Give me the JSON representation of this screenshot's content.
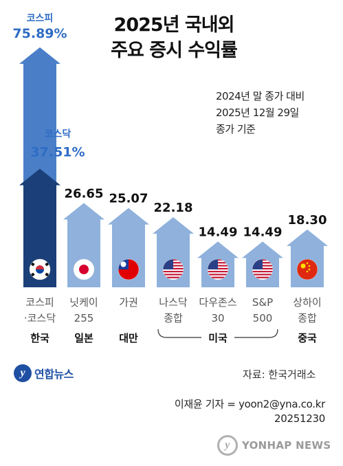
{
  "title_line1": "2025년 국내외",
  "title_line2": "주요 증시 수익률",
  "note_line1": "2024년 말 종가 대비",
  "note_line2": "2025년 12월 29일",
  "note_line3": "종가 기준",
  "source": "자료: 한국거래소",
  "author": "이재윤 기자 = yoon2@yna.co.kr",
  "date_code": "20251230",
  "logo_text": "연합뉴스",
  "watermark_text": "YONHAP NEWS",
  "colors": {
    "kospi": "#4a7fc8",
    "kosdaq": "#1b3f78",
    "others": "#8fb1dc",
    "label_kr": "#2f6cc4",
    "country": "#111111",
    "bracket": "#333333"
  },
  "chart_data": {
    "type": "bar",
    "categories": [
      "코스피",
      "코스닥",
      "닛케이255",
      "가권",
      "나스닥종합",
      "다우존스30",
      "S&P500",
      "상하이종합"
    ],
    "values": [
      75.89,
      37.51,
      26.65,
      25.07,
      22.18,
      14.49,
      14.49,
      18.3
    ],
    "value_labels": [
      "75.89%",
      "37.51%",
      "26.65",
      "25.07",
      "22.18",
      "14.49",
      "14.49",
      "18.30"
    ],
    "series_top_labels": [
      "코스피",
      "코스닥"
    ],
    "index_labels": [
      [
        "코스피",
        "·코스닥"
      ],
      [
        "닛케이",
        "255"
      ],
      [
        "가권",
        ""
      ],
      [
        "나스닥",
        "종합"
      ],
      [
        "다우존스",
        "30"
      ],
      [
        "S&P",
        "500"
      ],
      [
        "상하이",
        "종합"
      ]
    ],
    "countries": [
      "한국",
      "일본",
      "대만",
      "미국",
      "중국"
    ],
    "flags": [
      "korea-flag",
      "japan-flag",
      "taiwan-flag",
      "usa-flag",
      "usa-flag",
      "usa-flag",
      "china-flag"
    ],
    "unit": "%"
  }
}
